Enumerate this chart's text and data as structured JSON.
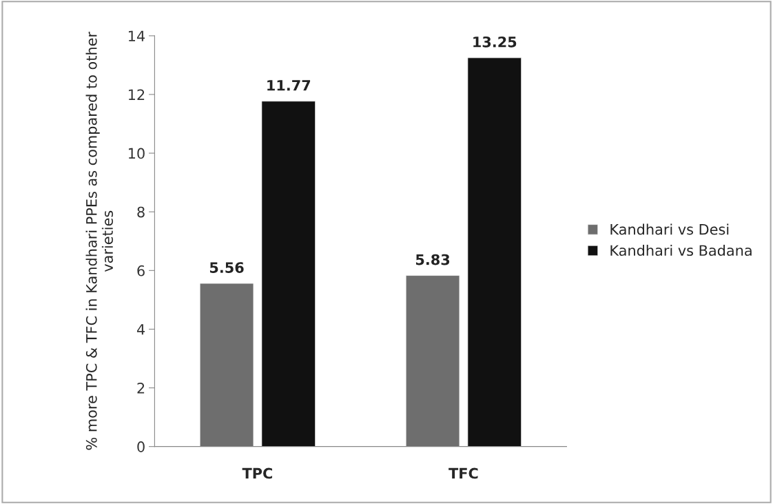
{
  "chart_data": {
    "type": "bar",
    "ylabel": "% more TPC & TFC in Kandhari PPEs as compared to other varieties",
    "categories": [
      "TPC",
      "TFC"
    ],
    "series": [
      {
        "name": "Kandhari vs Desi",
        "color": "#6e6e6e",
        "values": [
          5.56,
          5.83
        ]
      },
      {
        "name": "Kandhari vs Badana",
        "color": "#111111",
        "values": [
          11.77,
          13.25
        ]
      }
    ],
    "ylim": [
      0,
      14
    ],
    "yticks": [
      0,
      2,
      4,
      6,
      8,
      10,
      12,
      14
    ],
    "data_labels": true,
    "grid": false,
    "legend": "right"
  }
}
